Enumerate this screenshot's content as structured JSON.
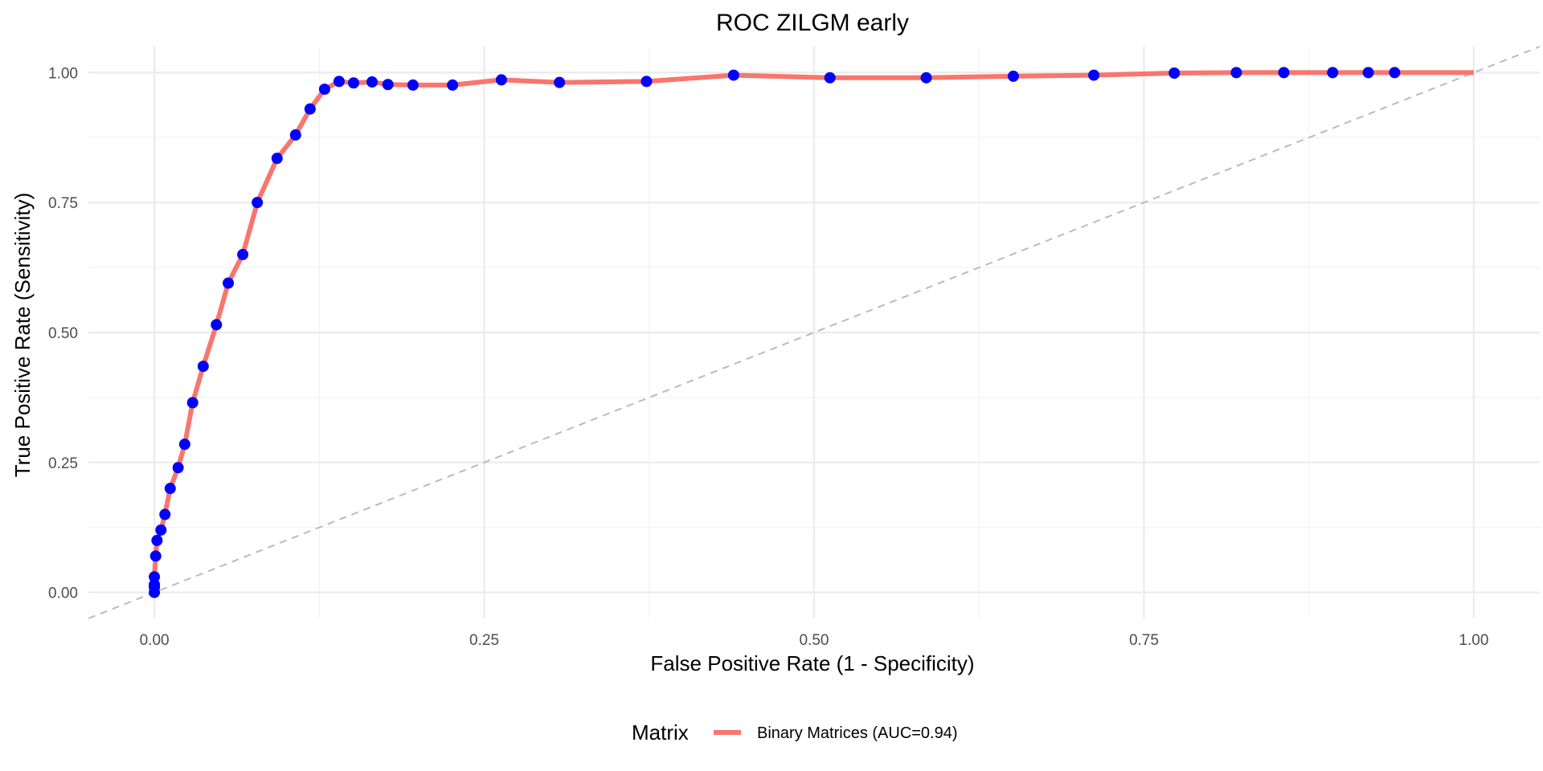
{
  "chart_data": {
    "type": "line",
    "title": "ROC ZILGM early",
    "xlabel": "False Positive Rate (1 - Specificity)",
    "ylabel": "True Positive Rate (Sensitivity)",
    "xlim": [
      -0.05,
      1.05
    ],
    "ylim": [
      -0.05,
      1.05
    ],
    "xticks": [
      0.0,
      0.25,
      0.5,
      0.75,
      1.0
    ],
    "xtick_labels": [
      "0.00",
      "0.25",
      "0.50",
      "0.75",
      "1.00"
    ],
    "yticks": [
      0.0,
      0.25,
      0.5,
      0.75,
      1.0
    ],
    "ytick_labels": [
      "0.00",
      "0.25",
      "0.50",
      "0.75",
      "1.00"
    ],
    "grid": true,
    "legend": {
      "title": "Matrix",
      "position": "bottom"
    },
    "series": [
      {
        "name": "Binary Matrices (AUC=0.94)",
        "color": "#F8766D",
        "point_color": "#0000FF",
        "x": [
          0.0,
          0.0,
          0.0,
          0.0,
          0.001,
          0.002,
          0.005,
          0.008,
          0.012,
          0.018,
          0.023,
          0.029,
          0.037,
          0.047,
          0.056,
          0.067,
          0.078,
          0.093,
          0.107,
          0.118,
          0.129,
          0.14,
          0.151,
          0.165,
          0.177,
          0.196,
          0.226,
          0.263,
          0.307,
          0.373,
          0.439,
          0.512,
          0.585,
          0.651,
          0.712,
          0.773,
          0.82,
          0.856,
          0.893,
          0.92,
          0.94,
          1.0
        ],
        "y": [
          0.0,
          0.01,
          0.015,
          0.03,
          0.07,
          0.1,
          0.12,
          0.15,
          0.2,
          0.24,
          0.285,
          0.365,
          0.435,
          0.515,
          0.595,
          0.65,
          0.75,
          0.835,
          0.88,
          0.93,
          0.968,
          0.983,
          0.98,
          0.982,
          0.977,
          0.976,
          0.976,
          0.986,
          0.981,
          0.983,
          0.995,
          0.99,
          0.99,
          0.993,
          0.995,
          0.999,
          1.0,
          1.0,
          1.0,
          1.0,
          1.0,
          1.0
        ]
      }
    ],
    "reference_line": {
      "from": [
        -0.05,
        -0.05
      ],
      "to": [
        1.05,
        1.05
      ],
      "color": "#bbbbbb",
      "style": "dashed"
    }
  }
}
